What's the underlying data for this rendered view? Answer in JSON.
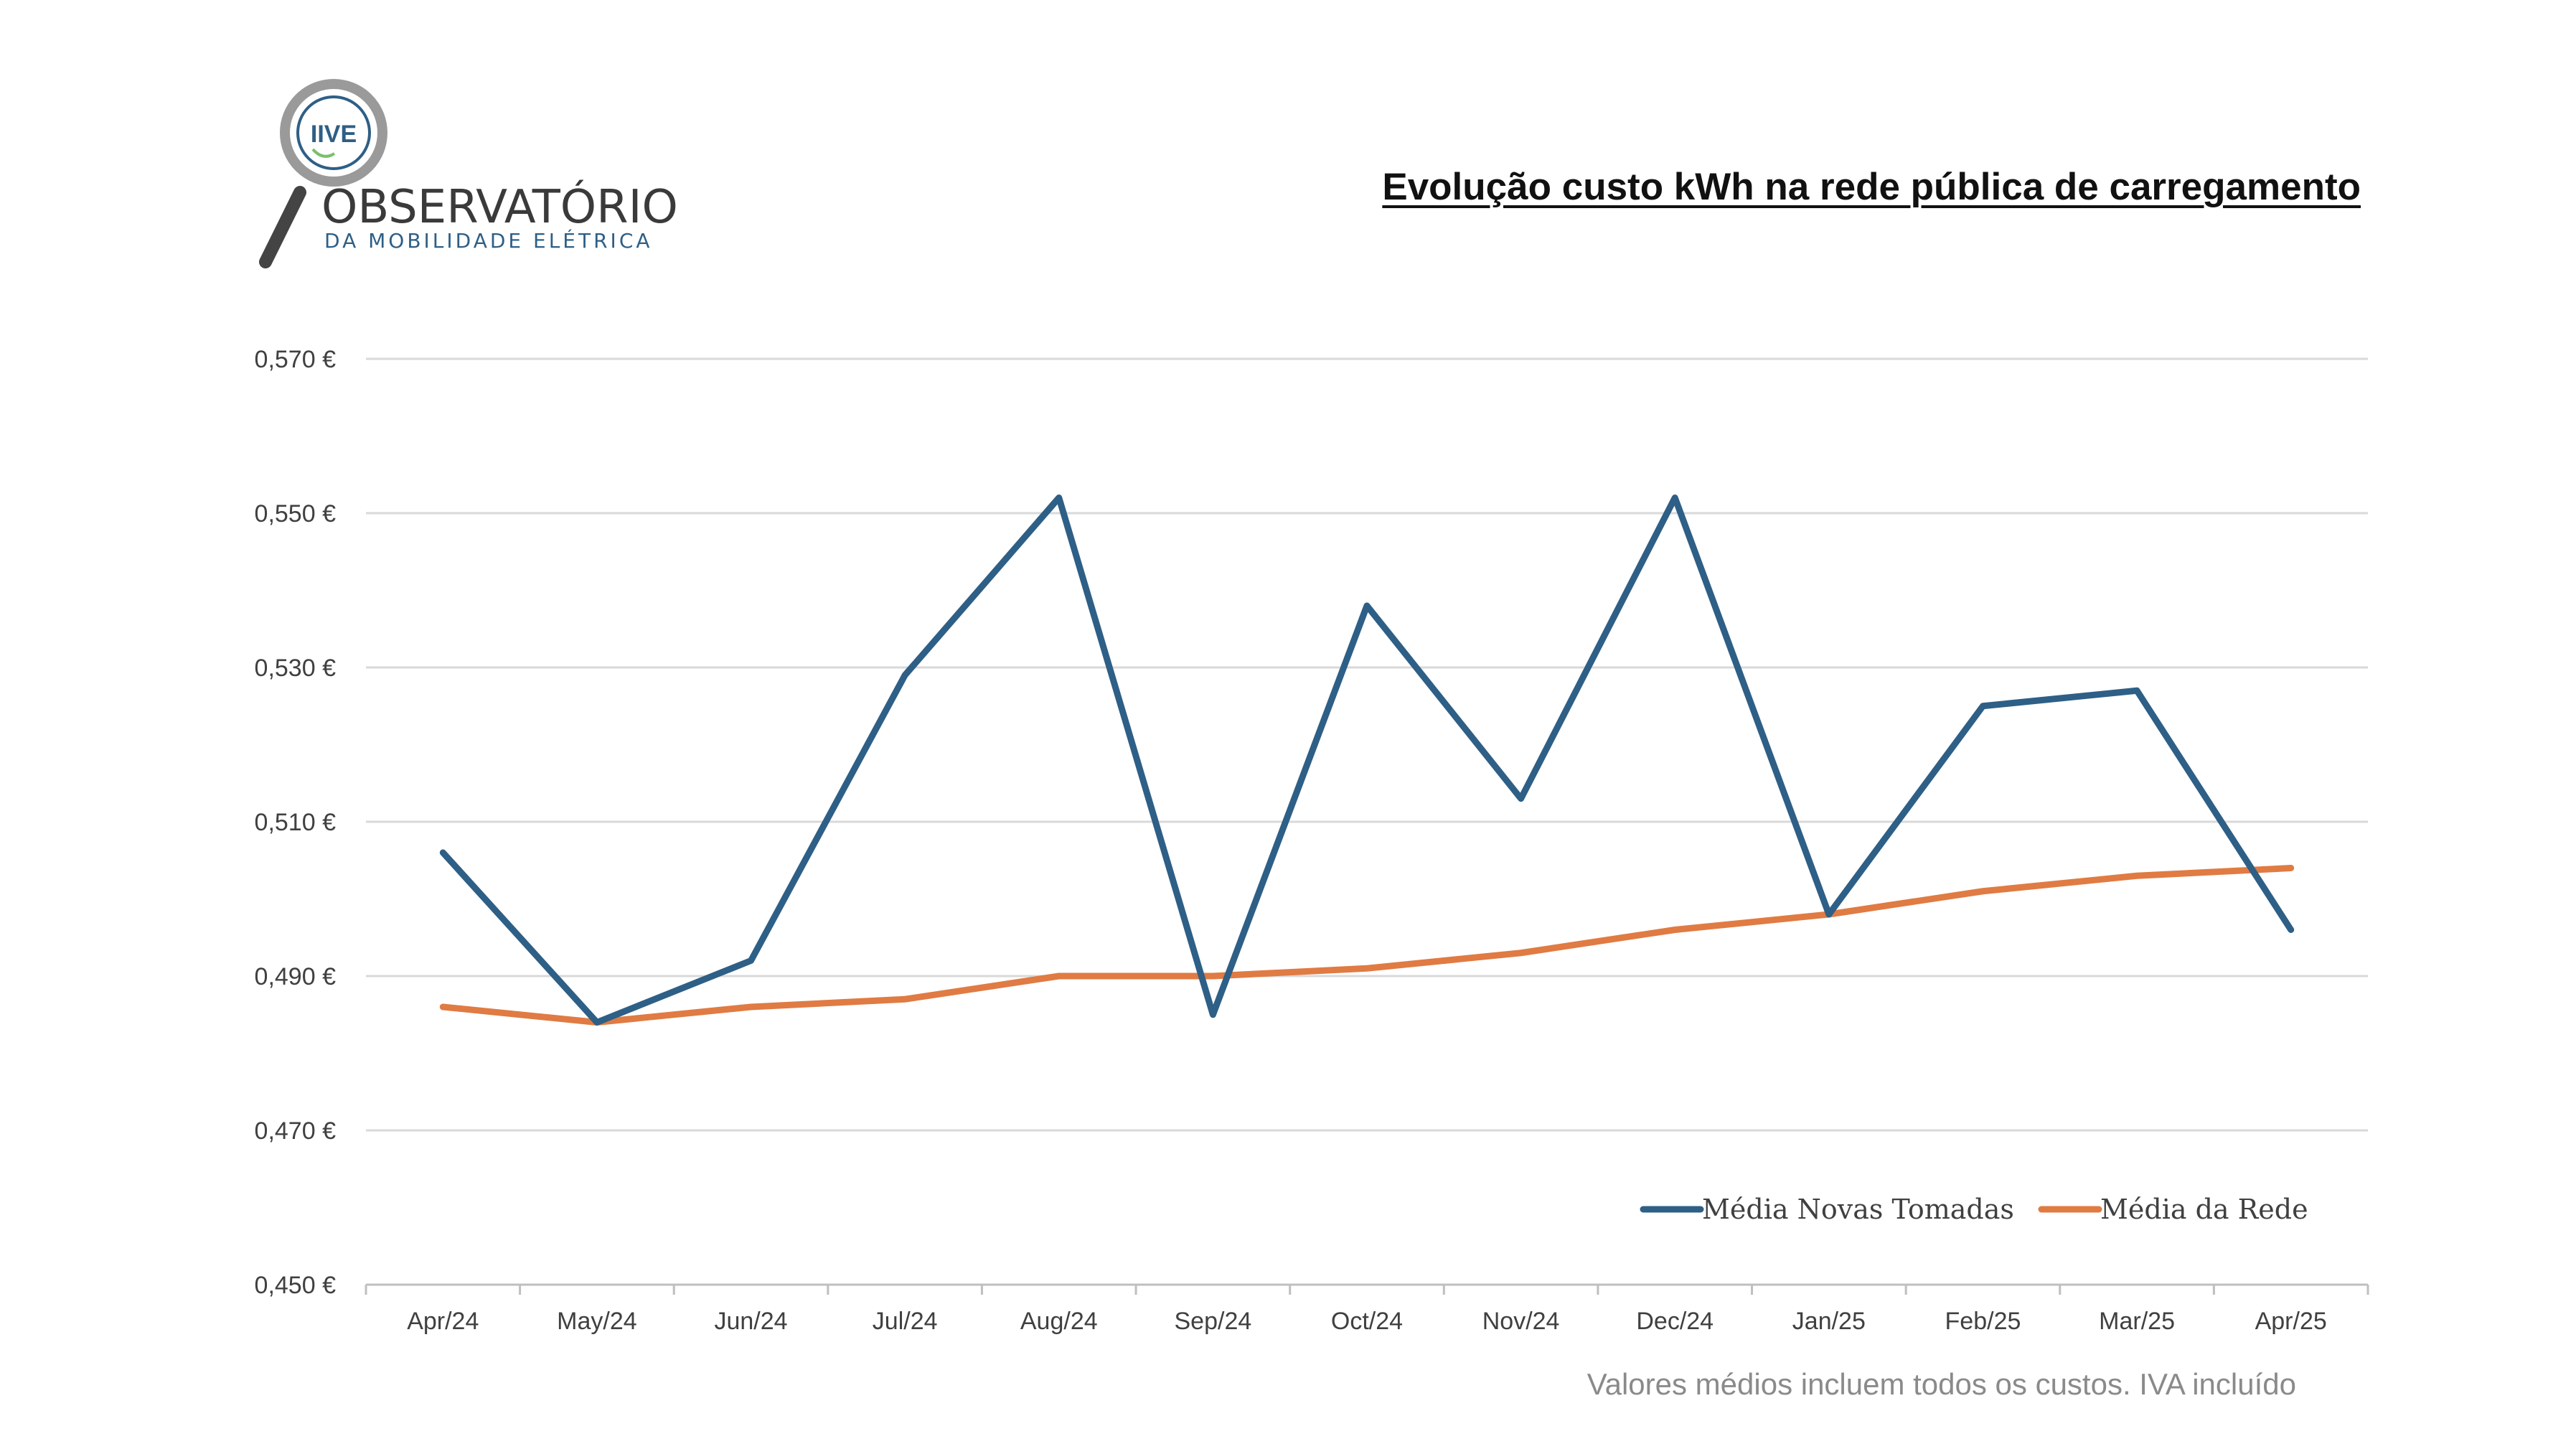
{
  "logo": {
    "badge_text": "IIVE",
    "name": "OBSERVATÓRIO",
    "tagline": "DA MOBILIDADE ELÉTRICA"
  },
  "footnote": "Valores médios incluem todos os custos. IVA incluído",
  "colors": {
    "series_1": "#2e5f86",
    "series_2": "#e07b43",
    "grid": "#d9d9d9",
    "logo_blue": "#2e5f86",
    "logo_green": "#7bbf6a"
  },
  "chart_data": {
    "type": "line",
    "title": "Evolução custo kWh na rede pública de carregamento",
    "categories": [
      "Apr/24",
      "May/24",
      "Jun/24",
      "Jul/24",
      "Aug/24",
      "Sep/24",
      "Oct/24",
      "Nov/24",
      "Dec/24",
      "Jan/25",
      "Feb/25",
      "Mar/25",
      "Apr/25"
    ],
    "series": [
      {
        "name": "Média Novas Tomadas",
        "color": "#2e5f86",
        "values": [
          0.506,
          0.484,
          0.492,
          0.529,
          0.552,
          0.485,
          0.538,
          0.513,
          0.552,
          0.498,
          0.525,
          0.527,
          0.496
        ]
      },
      {
        "name": "Média da Rede",
        "color": "#e07b43",
        "values": [
          0.486,
          0.484,
          0.486,
          0.487,
          0.49,
          0.49,
          0.491,
          0.493,
          0.496,
          0.498,
          0.501,
          0.503,
          0.504
        ]
      }
    ],
    "y_ticks": [
      "0,450 €",
      "0,470 €",
      "0,490 €",
      "0,510 €",
      "0,530 €",
      "0,550 €",
      "0,570 €"
    ],
    "ylim": [
      0.45,
      0.57
    ],
    "xlabel": "",
    "ylabel": "",
    "grid": true,
    "legend_position": "bottom-right"
  }
}
